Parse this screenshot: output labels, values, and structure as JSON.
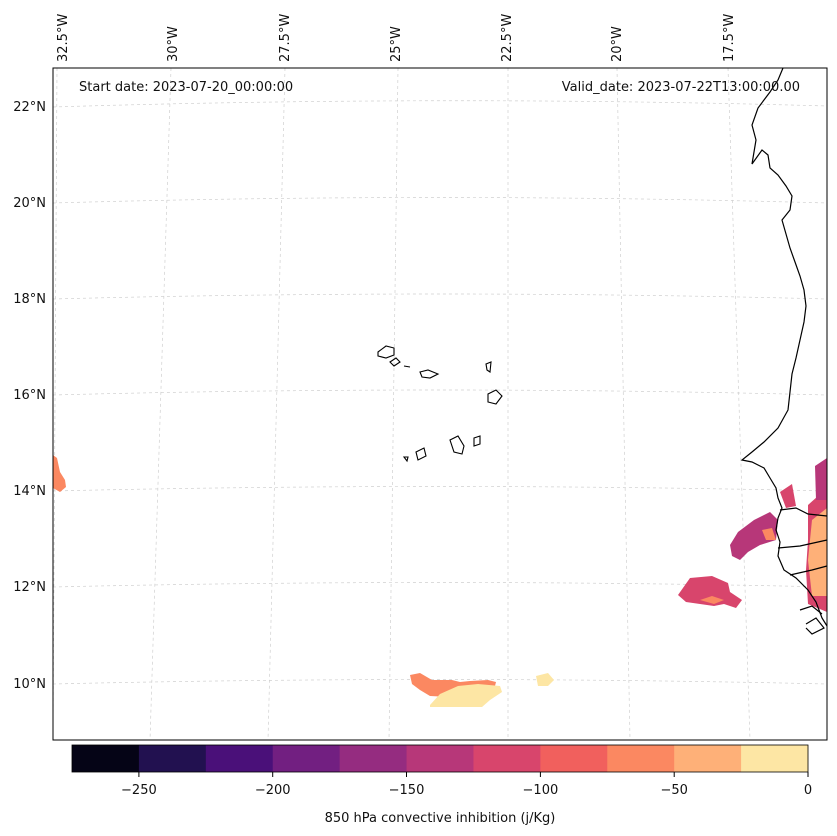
{
  "header": {
    "start": "Start date: 2023-07-20_00:00:00",
    "valid": "Valid_date: 2023-07-22T13:00:00.00"
  },
  "lon_labels": [
    "32.5°W",
    "30°W",
    "27.5°W",
    "25°W",
    "22.5°W",
    "20°W",
    "17.5°W"
  ],
  "lat_labels": [
    "22°N",
    "20°N",
    "18°N",
    "16°N",
    "14°N",
    "12°N",
    "10°N"
  ],
  "colorbar": {
    "ticks": [
      "−250",
      "−200",
      "−150",
      "−100",
      "−50",
      "0"
    ],
    "label": "850 hPa convective inhibition (j/Kg)",
    "bins": [
      -275,
      -250,
      -225,
      -200,
      -175,
      -150,
      -125,
      -100,
      -75,
      -50,
      -25,
      0
    ],
    "colors": [
      "#050416",
      "#221150",
      "#4a1079",
      "#721f81",
      "#952c80",
      "#b73779",
      "#d8456c",
      "#f1605d",
      "#fb8861",
      "#feb078",
      "#fde6a4"
    ]
  }
}
